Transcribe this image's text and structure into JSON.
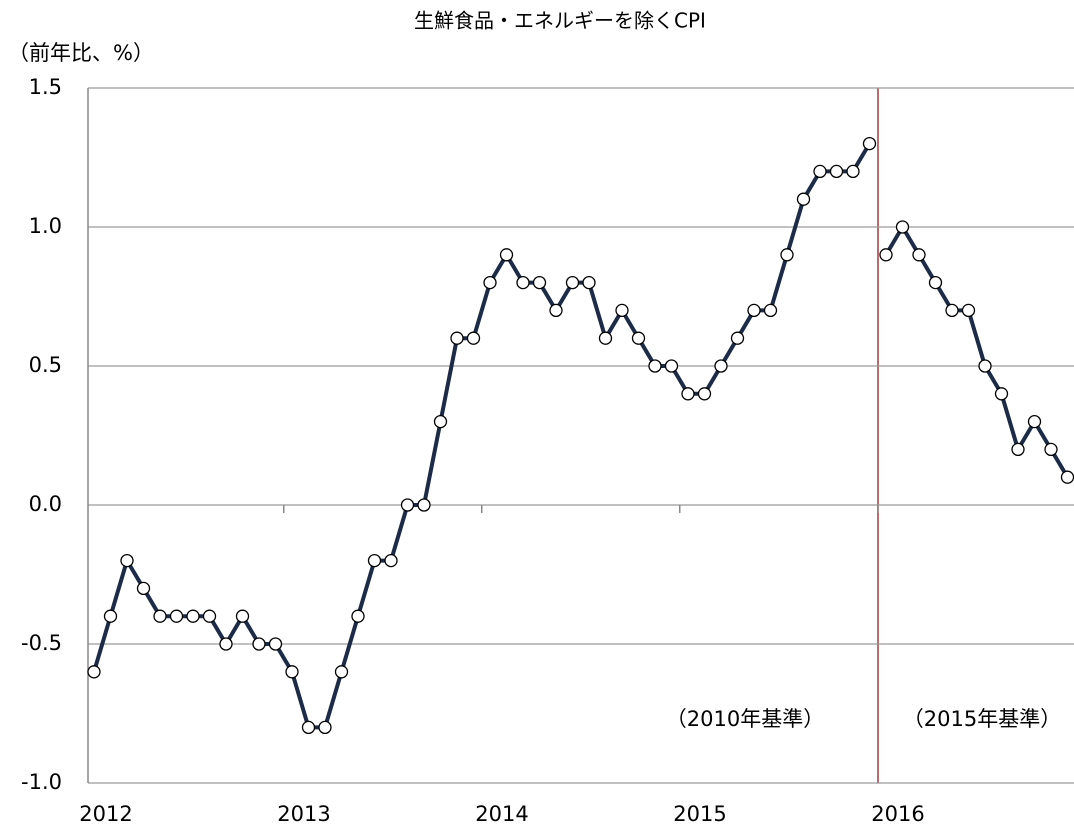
{
  "chart_data": {
    "type": "line",
    "title": "生鮮食品・エネルギーを除くCPI",
    "y_label": "（前年比、%）",
    "categories": [
      "2012",
      null,
      null,
      null,
      null,
      null,
      null,
      null,
      null,
      null,
      null,
      null,
      "2013",
      null,
      null,
      null,
      null,
      null,
      null,
      null,
      null,
      null,
      null,
      null,
      "2014",
      null,
      null,
      null,
      null,
      null,
      null,
      null,
      null,
      null,
      null,
      null,
      "2015",
      null,
      null,
      null,
      null,
      null,
      null,
      null,
      null,
      null,
      null,
      null,
      "2016",
      null,
      null,
      null,
      null,
      null,
      null,
      null,
      null,
      null,
      null,
      null
    ],
    "series": [
      {
        "color": "#1c2b47",
        "values": [
          -0.6,
          -0.4,
          -0.2,
          -0.3,
          -0.4,
          -0.4,
          -0.4,
          -0.4,
          -0.5,
          -0.4,
          -0.5,
          -0.5,
          -0.6,
          -0.8,
          -0.8,
          -0.6,
          -0.4,
          -0.2,
          -0.2,
          0.0,
          0.0,
          0.3,
          0.6,
          0.6,
          0.8,
          0.9,
          0.8,
          0.8,
          0.7,
          0.8,
          0.8,
          0.6,
          0.7,
          0.6,
          0.5,
          0.5,
          0.4,
          0.4,
          0.5,
          0.6,
          0.7,
          0.7,
          0.9,
          1.1,
          1.2,
          1.2,
          1.2,
          1.3,
          null,
          null,
          null,
          null,
          null,
          null,
          null,
          null,
          null,
          null,
          null,
          null
        ]
      },
      {
        "color": "#1c2b47",
        "values": [
          null,
          null,
          null,
          null,
          null,
          null,
          null,
          null,
          null,
          null,
          null,
          null,
          null,
          null,
          null,
          null,
          null,
          null,
          null,
          null,
          null,
          null,
          null,
          null,
          null,
          null,
          null,
          null,
          null,
          null,
          null,
          null,
          null,
          null,
          null,
          null,
          null,
          null,
          null,
          null,
          null,
          null,
          null,
          null,
          null,
          null,
          null,
          null,
          0.9,
          1.0,
          0.9,
          0.8,
          0.7,
          0.7,
          0.5,
          0.4,
          0.2,
          0.3,
          0.2,
          0.1
        ]
      }
    ],
    "annotations": [
      "（2010年基準）",
      "（2015年基準）"
    ],
    "ylim": [
      -1.0,
      1.5
    ],
    "yticks": [
      {
        "value": -1.0,
        "label": "-1.0"
      },
      -0.5,
      {
        "value": 0.0,
        "label": "0.0"
      },
      0.5,
      {
        "value": 1.0,
        "label": "1.0"
      },
      1.5
    ],
    "grid": true
  }
}
